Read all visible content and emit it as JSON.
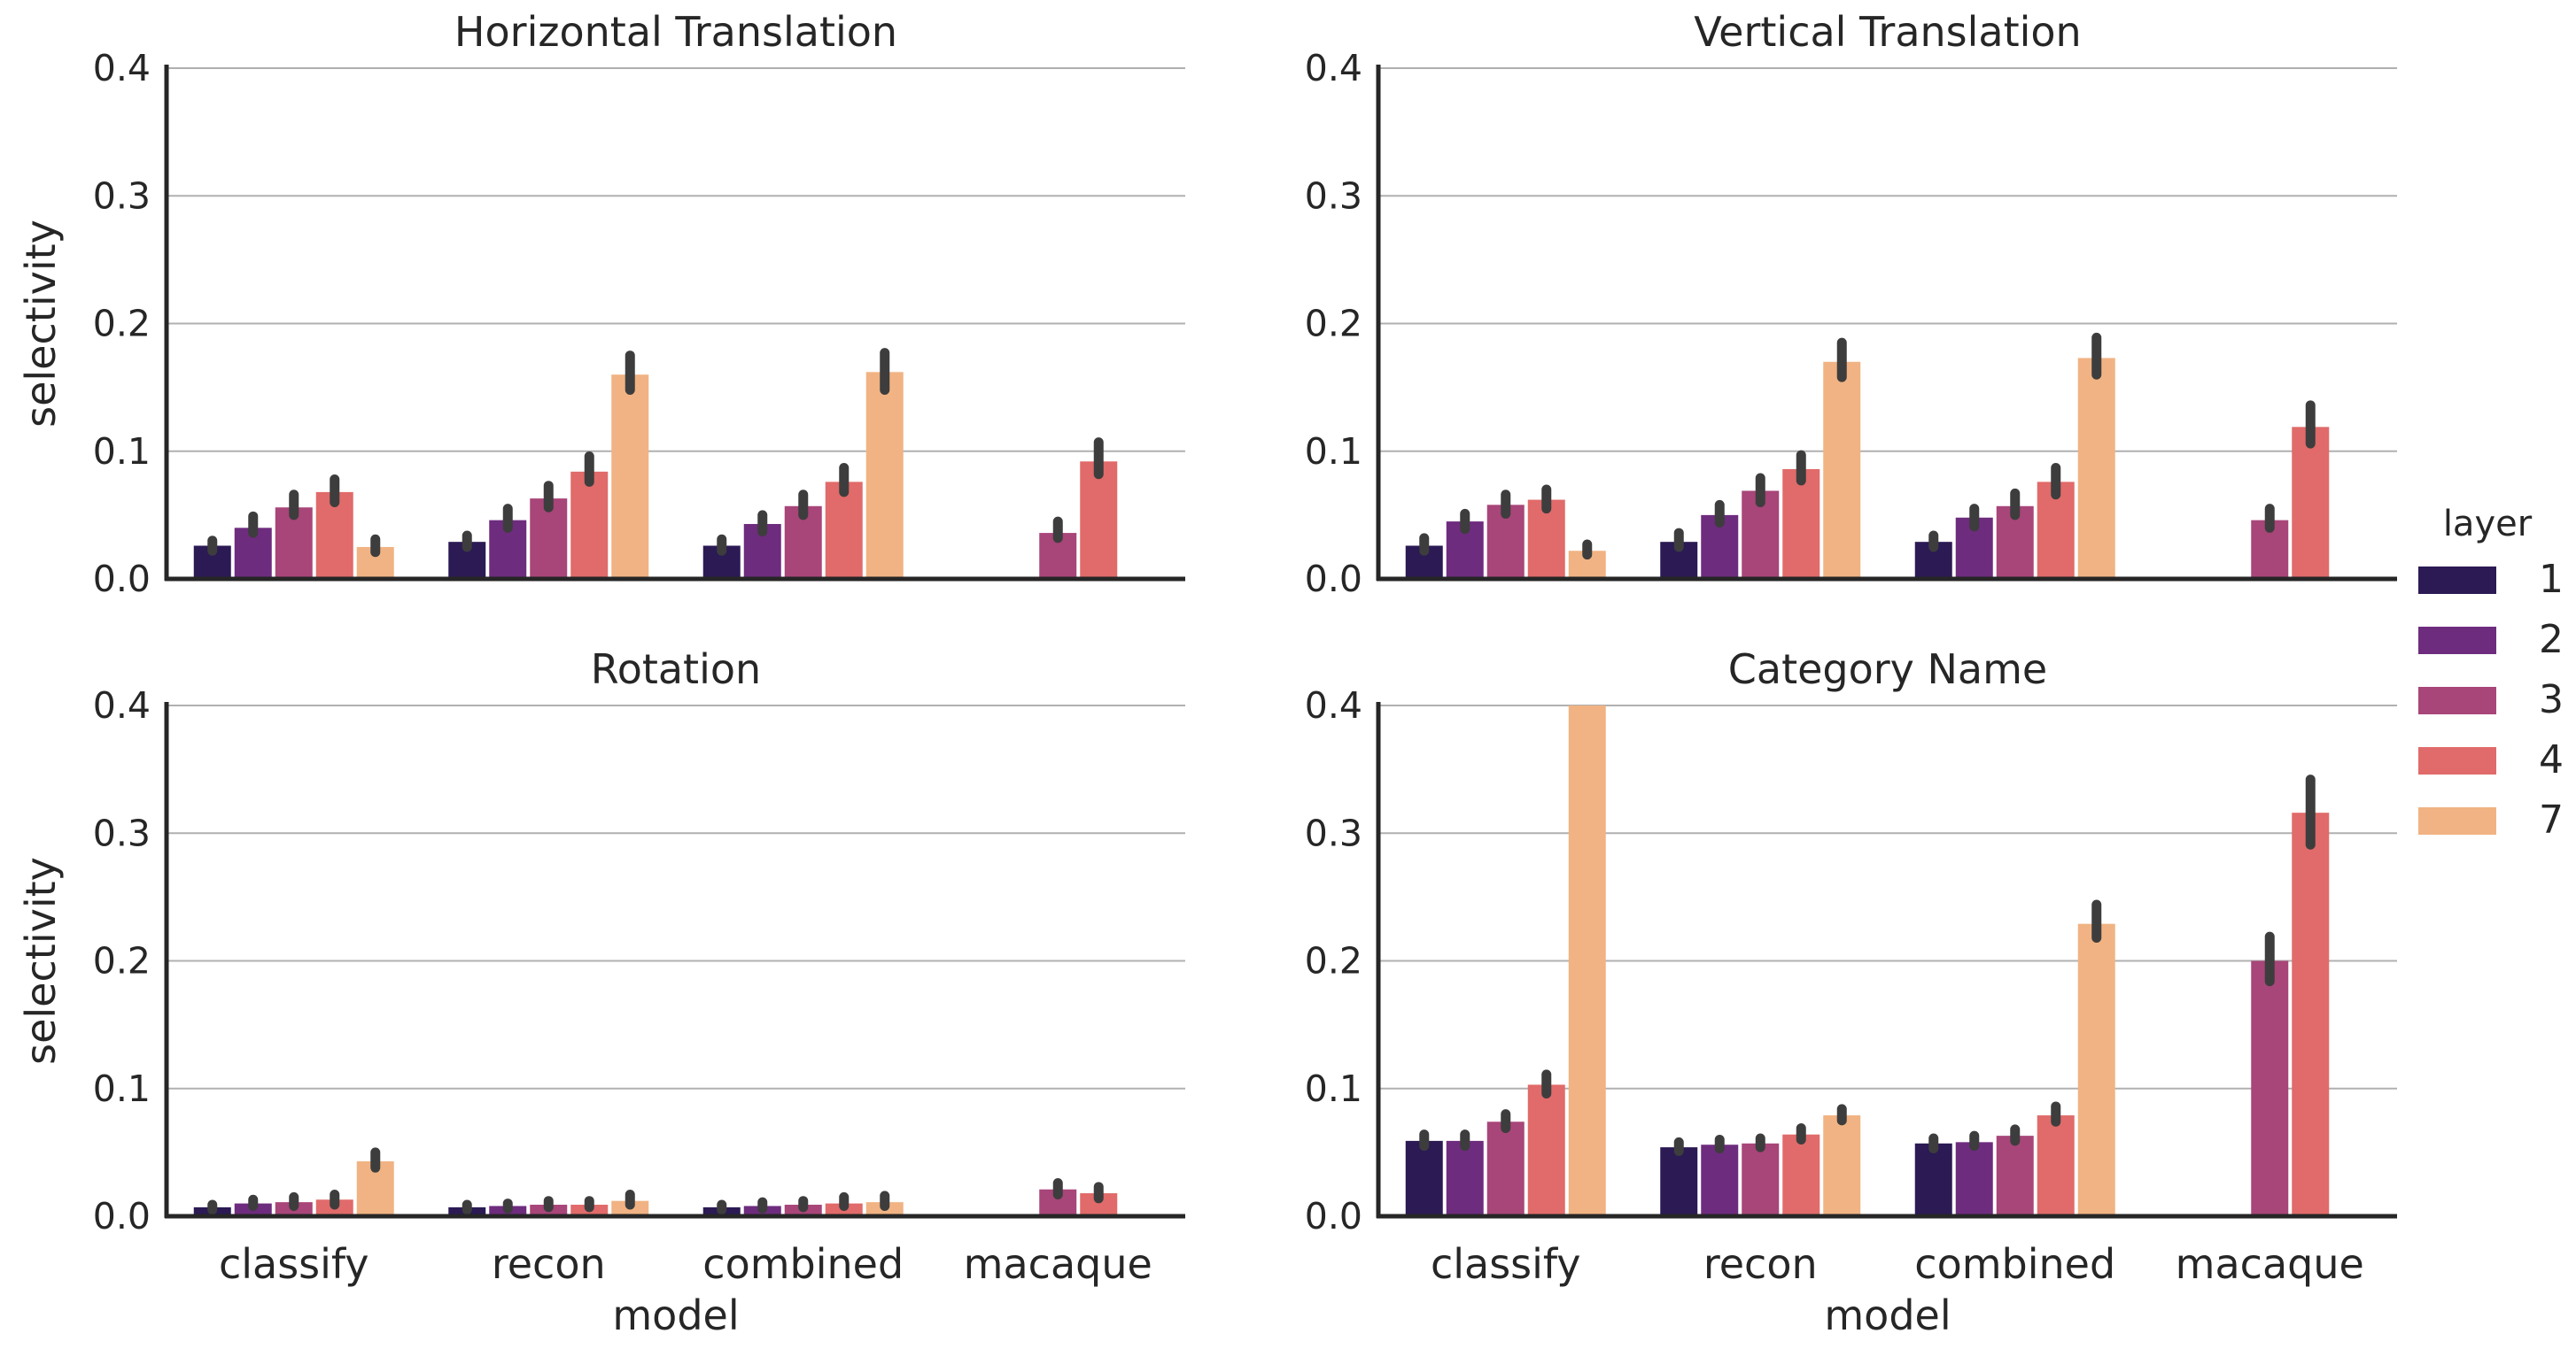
{
  "legend": {
    "title": "layer",
    "items": [
      {
        "label": "1",
        "color": "#2b1a54"
      },
      {
        "label": "2",
        "color": "#6e2c7e"
      },
      {
        "label": "3",
        "color": "#a84579"
      },
      {
        "label": "4",
        "color": "#e06b6a"
      },
      {
        "label": "7",
        "color": "#f1b383"
      }
    ],
    "placement": "center-right"
  },
  "chart_data": [
    {
      "type": "bar",
      "title": "Horizontal Translation",
      "xlabel": "",
      "ylabel": "selectivity",
      "ylim": [
        0,
        0.4
      ],
      "yticks": [
        "0.0",
        "0.1",
        "0.2",
        "0.3",
        "0.4"
      ],
      "grid": "horizontal",
      "categories": [
        "classify",
        "recon",
        "combined",
        "macaque"
      ],
      "show_xticklabels": false,
      "series": [
        {
          "name": "1",
          "values": [
            0.026,
            0.029,
            0.026,
            null
          ],
          "err": [
            [
              0.022,
              0.03
            ],
            [
              0.025,
              0.034
            ],
            [
              0.022,
              0.031
            ],
            null
          ]
        },
        {
          "name": "2",
          "values": [
            0.04,
            0.046,
            0.043,
            null
          ],
          "err": [
            [
              0.036,
              0.049
            ],
            [
              0.04,
              0.055
            ],
            [
              0.037,
              0.05
            ],
            null
          ]
        },
        {
          "name": "3",
          "values": [
            0.056,
            0.063,
            0.057,
            null
          ],
          "err": [
            [
              0.05,
              0.066
            ],
            [
              0.056,
              0.073
            ],
            [
              0.05,
              0.066
            ],
            0
          ]
        },
        {
          "name": "4",
          "values": [
            0.068,
            0.084,
            0.076,
            0.092
          ],
          "err": [
            [
              0.06,
              0.078
            ],
            [
              0.076,
              0.096
            ],
            [
              0.068,
              0.087
            ],
            [
              0.082,
              0.107
            ]
          ]
        },
        {
          "name": "7",
          "values": [
            0.025,
            0.16,
            0.162,
            null
          ],
          "err": [
            [
              0.021,
              0.031
            ],
            [
              0.148,
              0.175
            ],
            [
              0.148,
              0.177
            ],
            null
          ]
        }
      ],
      "macaque_layer3": {
        "value": 0.036,
        "err": [
          0.032,
          0.045
        ]
      }
    },
    {
      "type": "bar",
      "title": "Vertical Translation",
      "xlabel": "",
      "ylabel": "",
      "ylim": [
        0,
        0.4
      ],
      "yticks": [
        "0.0",
        "0.1",
        "0.2",
        "0.3",
        "0.4"
      ],
      "grid": "horizontal",
      "categories": [
        "classify",
        "recon",
        "combined",
        "macaque"
      ],
      "show_xticklabels": false,
      "series": [
        {
          "name": "1",
          "values": [
            0.026,
            0.029,
            0.029,
            null
          ],
          "err": [
            [
              0.022,
              0.032
            ],
            [
              0.025,
              0.036
            ],
            [
              0.025,
              0.034
            ],
            null
          ]
        },
        {
          "name": "2",
          "values": [
            0.045,
            0.05,
            0.048,
            null
          ],
          "err": [
            [
              0.039,
              0.051
            ],
            [
              0.044,
              0.058
            ],
            [
              0.041,
              0.055
            ],
            null
          ]
        },
        {
          "name": "3",
          "values": [
            0.058,
            0.069,
            0.057,
            0.046
          ],
          "err": [
            [
              0.051,
              0.066
            ],
            [
              0.06,
              0.079
            ],
            [
              0.05,
              0.067
            ],
            [
              0.04,
              0.055
            ]
          ]
        },
        {
          "name": "4",
          "values": [
            0.062,
            0.086,
            0.076,
            0.119
          ],
          "err": [
            [
              0.055,
              0.07
            ],
            [
              0.077,
              0.097
            ],
            [
              0.066,
              0.087
            ],
            [
              0.106,
              0.136
            ]
          ]
        },
        {
          "name": "7",
          "values": [
            0.022,
            0.17,
            0.173,
            null
          ],
          "err": [
            [
              0.019,
              0.027
            ],
            [
              0.158,
              0.185
            ],
            [
              0.16,
              0.189
            ],
            null
          ]
        }
      ]
    },
    {
      "type": "bar",
      "title": "Rotation",
      "xlabel": "model",
      "ylabel": "selectivity",
      "ylim": [
        0,
        0.4
      ],
      "yticks": [
        "0.0",
        "0.1",
        "0.2",
        "0.3",
        "0.4"
      ],
      "grid": "horizontal",
      "categories": [
        "classify",
        "recon",
        "combined",
        "macaque"
      ],
      "show_xticklabels": true,
      "series": [
        {
          "name": "1",
          "values": [
            0.007,
            0.007,
            0.007,
            null
          ],
          "err": [
            [
              0.005,
              0.009
            ],
            [
              0.005,
              0.009
            ],
            [
              0.005,
              0.009
            ],
            null
          ]
        },
        {
          "name": "2",
          "values": [
            0.01,
            0.008,
            0.008,
            null
          ],
          "err": [
            [
              0.008,
              0.013
            ],
            [
              0.006,
              0.01
            ],
            [
              0.006,
              0.011
            ],
            null
          ]
        },
        {
          "name": "3",
          "values": [
            0.011,
            0.009,
            0.009,
            0.021
          ],
          "err": [
            [
              0.008,
              0.015
            ],
            [
              0.007,
              0.012
            ],
            [
              0.007,
              0.012
            ],
            [
              0.017,
              0.026
            ]
          ]
        },
        {
          "name": "4",
          "values": [
            0.013,
            0.009,
            0.01,
            0.018
          ],
          "err": [
            [
              0.009,
              0.017
            ],
            [
              0.007,
              0.012
            ],
            [
              0.008,
              0.015
            ],
            [
              0.014,
              0.023
            ]
          ]
        },
        {
          "name": "7",
          "values": [
            0.043,
            0.012,
            0.011,
            null
          ],
          "err": [
            [
              0.038,
              0.05
            ],
            [
              0.009,
              0.017
            ],
            [
              0.008,
              0.016
            ],
            null
          ]
        }
      ]
    },
    {
      "type": "bar",
      "title": "Category Name",
      "xlabel": "model",
      "ylabel": "",
      "ylim": [
        0,
        0.4
      ],
      "yticks": [
        "0.0",
        "0.1",
        "0.2",
        "0.3",
        "0.4"
      ],
      "grid": "horizontal",
      "categories": [
        "classify",
        "recon",
        "combined",
        "macaque"
      ],
      "show_xticklabels": true,
      "series": [
        {
          "name": "1",
          "values": [
            0.059,
            0.054,
            0.057,
            null
          ],
          "err": [
            [
              0.055,
              0.064
            ],
            [
              0.051,
              0.058
            ],
            [
              0.053,
              0.061
            ],
            null
          ]
        },
        {
          "name": "2",
          "values": [
            0.059,
            0.056,
            0.058,
            null
          ],
          "err": [
            [
              0.055,
              0.064
            ],
            [
              0.053,
              0.06
            ],
            [
              0.055,
              0.063
            ],
            null
          ]
        },
        {
          "name": "3",
          "values": [
            0.074,
            0.057,
            0.063,
            0.2
          ],
          "err": [
            [
              0.069,
              0.08
            ],
            [
              0.054,
              0.061
            ],
            [
              0.059,
              0.068
            ],
            [
              0.184,
              0.219
            ]
          ]
        },
        {
          "name": "4",
          "values": [
            0.103,
            0.064,
            0.079,
            0.316
          ],
          "err": [
            [
              0.096,
              0.111
            ],
            [
              0.06,
              0.069
            ],
            [
              0.074,
              0.086
            ],
            [
              0.291,
              0.342
            ]
          ]
        },
        {
          "name": "7",
          "values": [
            0.4,
            0.079,
            0.229,
            null
          ],
          "err": [
            null,
            [
              0.075,
              0.084
            ],
            [
              0.218,
              0.244
            ],
            null
          ]
        }
      ]
    }
  ]
}
